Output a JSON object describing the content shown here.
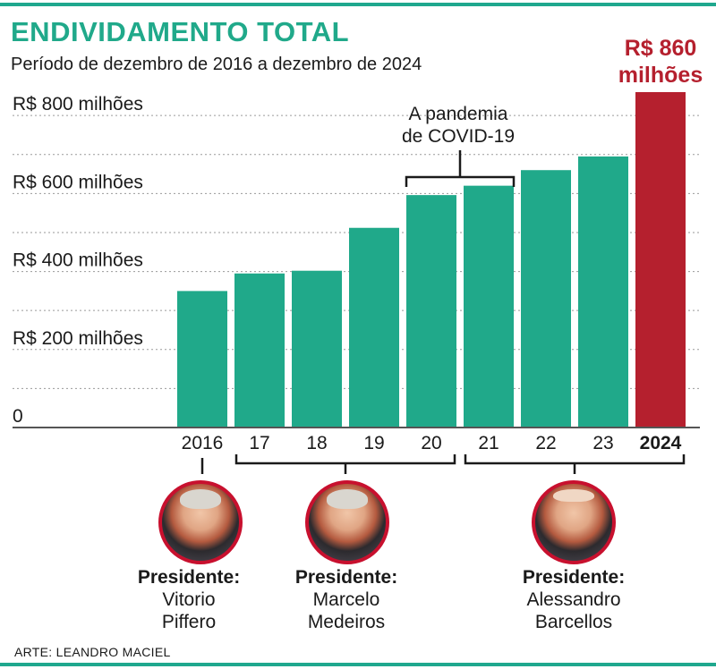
{
  "title": "ENDIVIDAMENTO TOTAL",
  "subtitle": "Período de dezembro de 2016 a dezembro de 2024",
  "colors": {
    "accent": "#20a98a",
    "highlight": "#b5202e"
  },
  "chart_data": {
    "type": "bar",
    "categories": [
      "2016",
      "17",
      "18",
      "19",
      "20",
      "21",
      "22",
      "23",
      "2024"
    ],
    "values": [
      350,
      395,
      402,
      512,
      596,
      620,
      660,
      695,
      860
    ],
    "highlight_index": 8,
    "highlight_label": [
      "R$ 860",
      "milhões"
    ],
    "ylim": [
      0,
      860
    ],
    "yticks": [
      {
        "value": 0,
        "label": "0"
      },
      {
        "value": 200,
        "label": "R$ 200 milhões"
      },
      {
        "value": 400,
        "label": "R$ 400 milhões"
      },
      {
        "value": 600,
        "label": "R$ 600 milhões"
      },
      {
        "value": 800,
        "label": "R$ 800 milhões"
      }
    ],
    "gridlines": [
      100,
      300,
      500,
      700
    ],
    "annotation": {
      "lines": [
        "A pandemia",
        "de COVID-19"
      ],
      "from": "20",
      "to": "21"
    }
  },
  "presidents": [
    {
      "title": "Presidente:",
      "first": "Vitorio",
      "last": "Piffero",
      "period": [
        "2016"
      ]
    },
    {
      "title": "Presidente:",
      "first": "Marcelo",
      "last": "Medeiros",
      "period": [
        "17",
        "20"
      ]
    },
    {
      "title": "Presidente:",
      "first": "Alessandro",
      "last": "Barcellos",
      "period": [
        "21",
        "2024"
      ]
    }
  ],
  "credit": "ARTE: LEANDRO MACIEL"
}
